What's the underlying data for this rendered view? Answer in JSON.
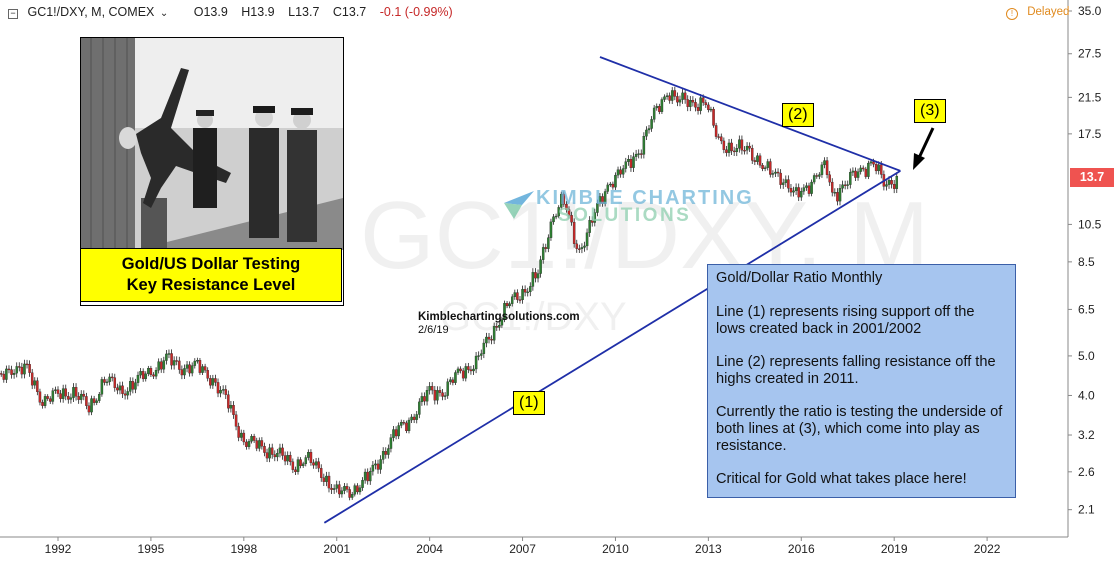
{
  "header": {
    "symbol": "GC1!/DXY, M, COMEX",
    "open": "O13.9",
    "high": "H13.9",
    "low": "L13.7",
    "close": "C13.7",
    "change": "-0.1 (-0.99%)",
    "status": "Delayed"
  },
  "watermark": {
    "main": "GC1!/DXY, M",
    "sub": "GC1!/DXY"
  },
  "logo": {
    "line1": "KIMBLE CHARTING",
    "line2": "SOLUTIONS"
  },
  "photo_caption": {
    "line1": "Gold/US Dollar Testing",
    "line2": "Key Resistance Level"
  },
  "site": {
    "name": "Kimblechartingsolutions.com",
    "date": "2/6/19"
  },
  "labels": {
    "line1": "(1)",
    "line2": "(2)",
    "line3": "(3)"
  },
  "notes": {
    "title": "Gold/Dollar Ratio Monthly",
    "p1": "Line (1) represents rising support off the lows created back in 2001/2002",
    "p2": "Line (2) represents falling resistance off the highs created in 2011.",
    "p3": "Currently the ratio is testing the underside of both lines at (3), which come into play as resistance.",
    "p4": "Critical for Gold what takes place here!"
  },
  "last_price": "13.7",
  "colors": {
    "up": "#2e7d32",
    "down": "#c62828",
    "trendline": "#1f2fa8",
    "label_bg": "#ffff00",
    "notes_bg": "#a6c5ef",
    "price_tag": "#ef5350"
  },
  "chart_data": {
    "type": "candlestick",
    "scale": "log",
    "ylim": [
      1.8,
      35.0
    ],
    "yticks": [
      2.1,
      2.6,
      3.2,
      4.0,
      5.0,
      6.5,
      8.5,
      10.5,
      13.7,
      17.5,
      21.5,
      27.5,
      35.0
    ],
    "xlim": [
      1989.8,
      2023.2
    ],
    "xticks": [
      "1992",
      "1995",
      "1998",
      "2001",
      "2004",
      "2007",
      "2010",
      "2013",
      "2016",
      "2019",
      "2022"
    ],
    "trendlines": [
      {
        "name": "(1)",
        "x": [
          2000.6,
          2019.2
        ],
        "y": [
          1.95,
          14.2
        ]
      },
      {
        "name": "(2)",
        "x": [
          2009.5,
          2019.2
        ],
        "y": [
          27.0,
          14.2
        ]
      }
    ],
    "anchors": [
      [
        1990.0,
        4.3
      ],
      [
        1990.5,
        4.7
      ],
      [
        1991.0,
        4.6
      ],
      [
        1991.5,
        3.9
      ],
      [
        1992.0,
        4.0
      ],
      [
        1992.5,
        4.1
      ],
      [
        1993.0,
        3.7
      ],
      [
        1993.5,
        4.4
      ],
      [
        1994.0,
        4.1
      ],
      [
        1994.5,
        4.3
      ],
      [
        1995.0,
        4.6
      ],
      [
        1995.5,
        4.9
      ],
      [
        1996.0,
        4.7
      ],
      [
        1996.5,
        4.7
      ],
      [
        1997.0,
        4.4
      ],
      [
        1997.5,
        3.8
      ],
      [
        1998.0,
        3.1
      ],
      [
        1998.5,
        3.0
      ],
      [
        1999.0,
        2.9
      ],
      [
        1999.6,
        2.7
      ],
      [
        2000.0,
        2.8
      ],
      [
        2000.5,
        2.6
      ],
      [
        2001.0,
        2.3
      ],
      [
        2001.5,
        2.35
      ],
      [
        2002.0,
        2.5
      ],
      [
        2002.5,
        2.9
      ],
      [
        2003.0,
        3.3
      ],
      [
        2003.5,
        3.6
      ],
      [
        2004.0,
        4.1
      ],
      [
        2004.5,
        4.1
      ],
      [
        2005.0,
        4.6
      ],
      [
        2005.5,
        4.8
      ],
      [
        2006.0,
        5.7
      ],
      [
        2006.5,
        6.6
      ],
      [
        2007.0,
        7.2
      ],
      [
        2007.5,
        7.9
      ],
      [
        2008.0,
        11.2
      ],
      [
        2008.3,
        12.1
      ],
      [
        2008.8,
        9.0
      ],
      [
        2009.2,
        10.5
      ],
      [
        2009.8,
        13.4
      ],
      [
        2010.3,
        14.3
      ],
      [
        2010.8,
        16.2
      ],
      [
        2011.3,
        19.8
      ],
      [
        2011.7,
        22.5
      ],
      [
        2012.0,
        21.0
      ],
      [
        2012.5,
        21.0
      ],
      [
        2012.9,
        20.8
      ],
      [
        2013.3,
        17.2
      ],
      [
        2013.8,
        15.8
      ],
      [
        2014.3,
        16.3
      ],
      [
        2014.8,
        14.2
      ],
      [
        2015.3,
        14.0
      ],
      [
        2015.8,
        12.2
      ],
      [
        2016.3,
        13.4
      ],
      [
        2016.8,
        14.5
      ],
      [
        2017.0,
        12.5
      ],
      [
        2017.5,
        13.3
      ],
      [
        2018.0,
        14.5
      ],
      [
        2018.3,
        15.0
      ],
      [
        2018.7,
        13.0
      ],
      [
        2019.0,
        13.6
      ],
      [
        2019.1,
        13.7
      ]
    ],
    "ohlc": [],
    "last": 13.7
  }
}
